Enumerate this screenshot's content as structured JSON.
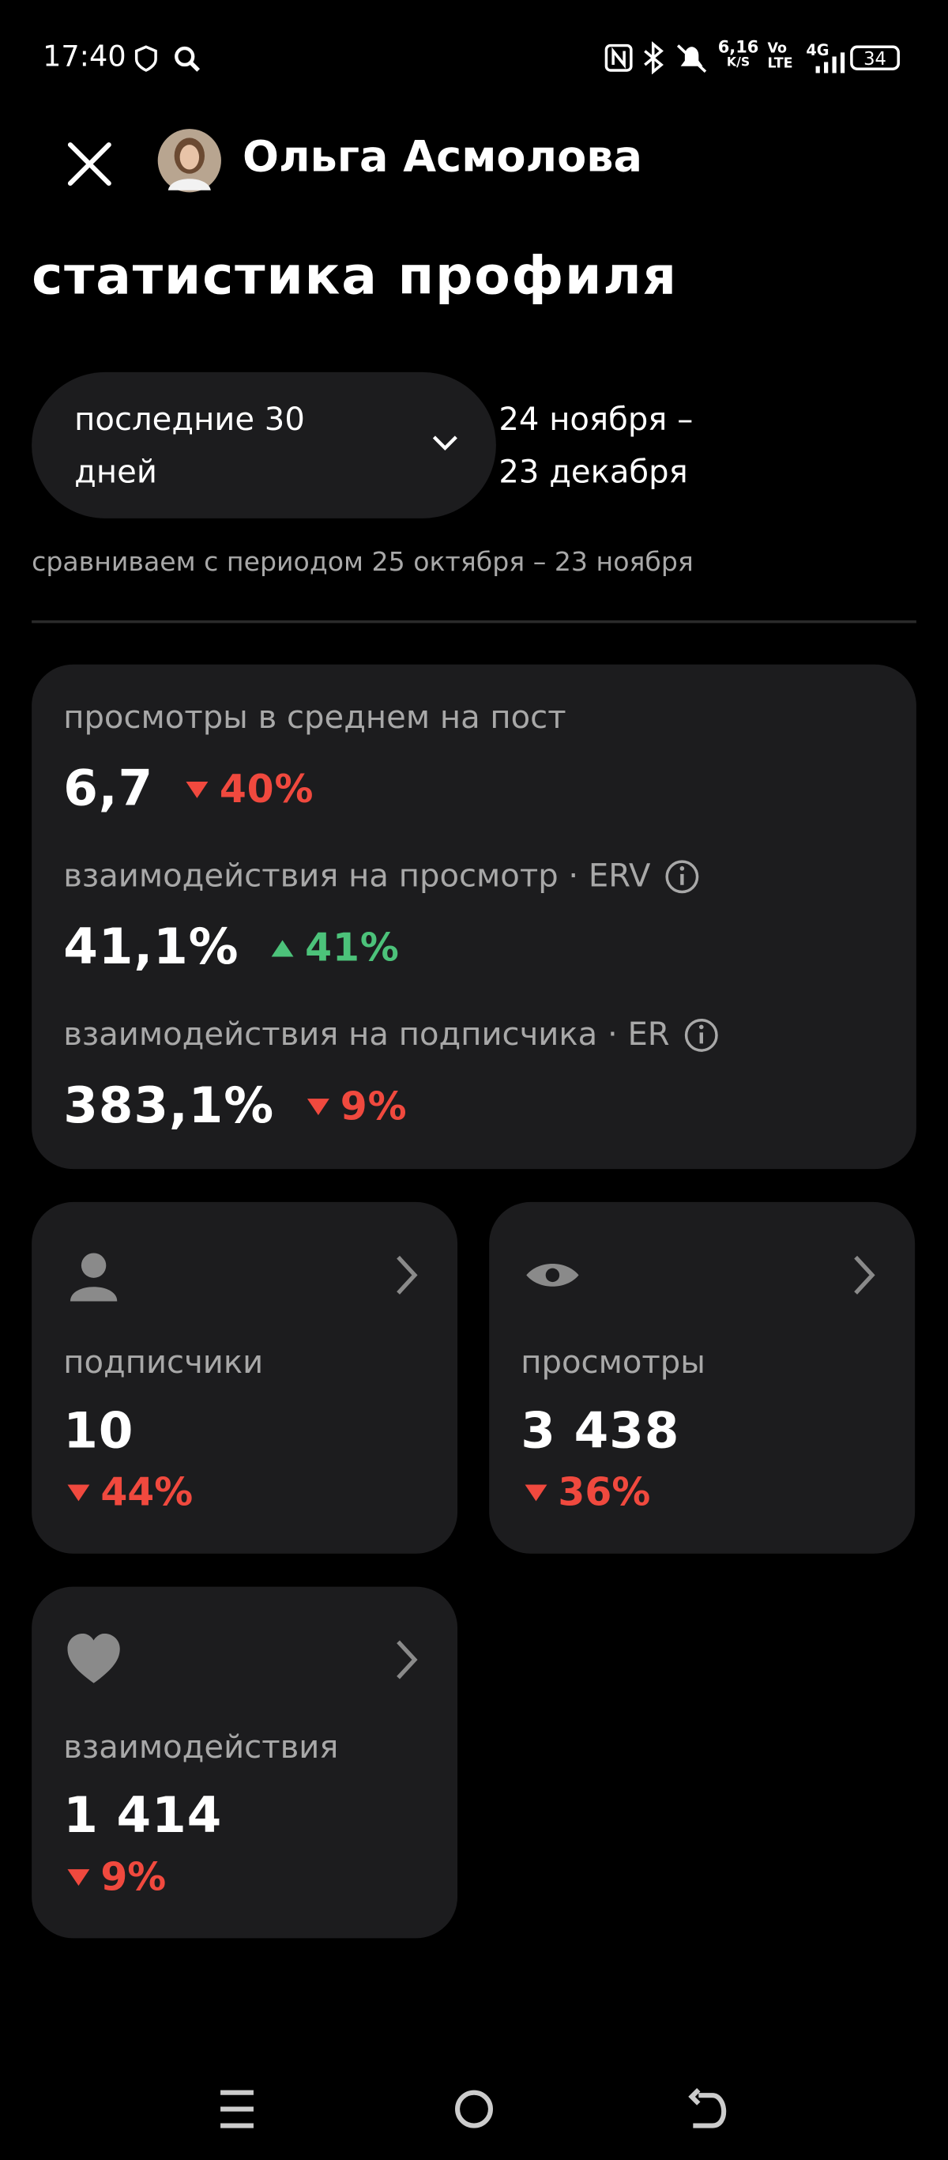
{
  "status_bar": {
    "time": "17:40",
    "speed": "6,16",
    "speed_unit": "K/S",
    "volte_top": "Vo",
    "volte_bottom": "LTE",
    "network": "4G",
    "battery": "34"
  },
  "header": {
    "name": "Ольга Асмолова",
    "title": "статистика профиля"
  },
  "period": {
    "selector": "последние 30 дней",
    "range": "24 ноября – 23 декабря",
    "compare": "сравниваем с периодом 25 октября – 23 ноября"
  },
  "summary": [
    {
      "label": "просмотры в среднем на пост",
      "value": "6,7",
      "change": "40%",
      "trend": "down"
    },
    {
      "label": "взаимодействия на просмотр · ERV",
      "value": "41,1%",
      "change": "41%",
      "trend": "up"
    },
    {
      "label": "взаимодействия на подписчика · ER",
      "value": "383,1%",
      "change": "9%",
      "trend": "down"
    }
  ],
  "cards": [
    {
      "label": "подписчики",
      "value": "10",
      "change": "44%",
      "trend": "down"
    },
    {
      "label": "просмотры",
      "value": "3 438",
      "change": "36%",
      "trend": "down"
    },
    {
      "label": "взаимодействия",
      "value": "1 414",
      "change": "9%",
      "trend": "down"
    }
  ]
}
